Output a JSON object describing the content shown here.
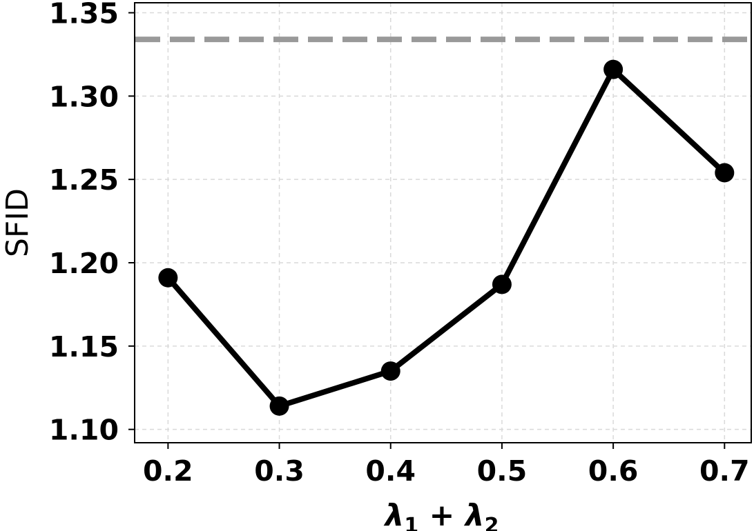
{
  "chart_data": {
    "type": "line",
    "title": "",
    "xlabel_parts": [
      "λ",
      "1",
      " + ",
      "λ",
      "2"
    ],
    "ylabel": "SFID",
    "x": [
      0.2,
      0.3,
      0.4,
      0.5,
      0.6,
      0.7
    ],
    "x_tick_labels": [
      "0.2",
      "0.3",
      "0.4",
      "0.5",
      "0.6",
      "0.7"
    ],
    "y_ticks": [
      1.1,
      1.15,
      1.2,
      1.25,
      1.3,
      1.35
    ],
    "y_tick_labels": [
      "1.10",
      "1.15",
      "1.20",
      "1.25",
      "1.30",
      "1.35"
    ],
    "xlim": [
      0.17,
      0.724
    ],
    "ylim": [
      1.092,
      1.356
    ],
    "grid": true,
    "series": [
      {
        "values": [
          1.191,
          1.114,
          1.135,
          1.187,
          1.316,
          1.254
        ],
        "color": "#000000",
        "marker": "circle"
      }
    ],
    "reference_line": {
      "y": 1.334,
      "color": "#999999",
      "style": "dashed"
    }
  }
}
